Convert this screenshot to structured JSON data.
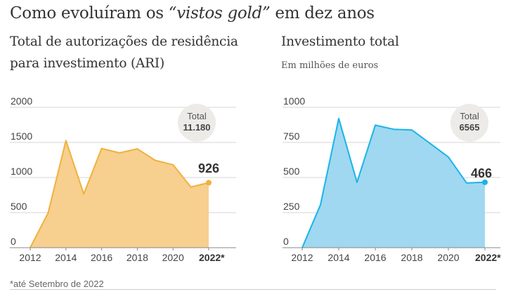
{
  "headline": {
    "before": "Como evoluíram os ",
    "emph": "“vistos gold”",
    "after": " em dez anos"
  },
  "footnote": "*até Setembro de 2022",
  "chart_data": [
    {
      "type": "area",
      "title_line1": "Total de autorizações de residência",
      "title_line2": "para investimento (ARI)",
      "subtitle": "",
      "x": [
        2012,
        2013,
        2014,
        2015,
        2016,
        2017,
        2018,
        2019,
        2020,
        2021,
        2022
      ],
      "values": [
        2,
        494,
        1526,
        766,
        1414,
        1351,
        1409,
        1245,
        1182,
        865,
        926
      ],
      "ylim": [
        0,
        2000
      ],
      "yticks": [
        "2000",
        "1500",
        "1000",
        "500",
        "0"
      ],
      "xticks": [
        "2012",
        "2014",
        "2016",
        "2018",
        "2020",
        "2022*"
      ],
      "total_label": "Total",
      "total_value": "11.180",
      "last_label": "926",
      "fill_color": "#f7cf8e",
      "line_color": "#f0b13f"
    },
    {
      "type": "area",
      "title_line1": "Investimento total",
      "title_line2": "",
      "subtitle": "Em milhões de euros",
      "x": [
        2012,
        2013,
        2014,
        2015,
        2016,
        2017,
        2018,
        2019,
        2020,
        2021,
        2022
      ],
      "values": [
        0,
        306,
        921,
        466,
        873,
        844,
        839,
        743,
        646,
        461,
        466
      ],
      "ylim": [
        0,
        1000
      ],
      "yticks": [
        "1000",
        "750",
        "500",
        "250",
        "0"
      ],
      "xticks": [
        "2012",
        "2014",
        "2016",
        "2018",
        "2020",
        "2022*"
      ],
      "total_label": "Total",
      "total_value": "6565",
      "last_label": "466",
      "fill_color": "#9fd8f0",
      "line_color": "#1ab4e8"
    }
  ]
}
